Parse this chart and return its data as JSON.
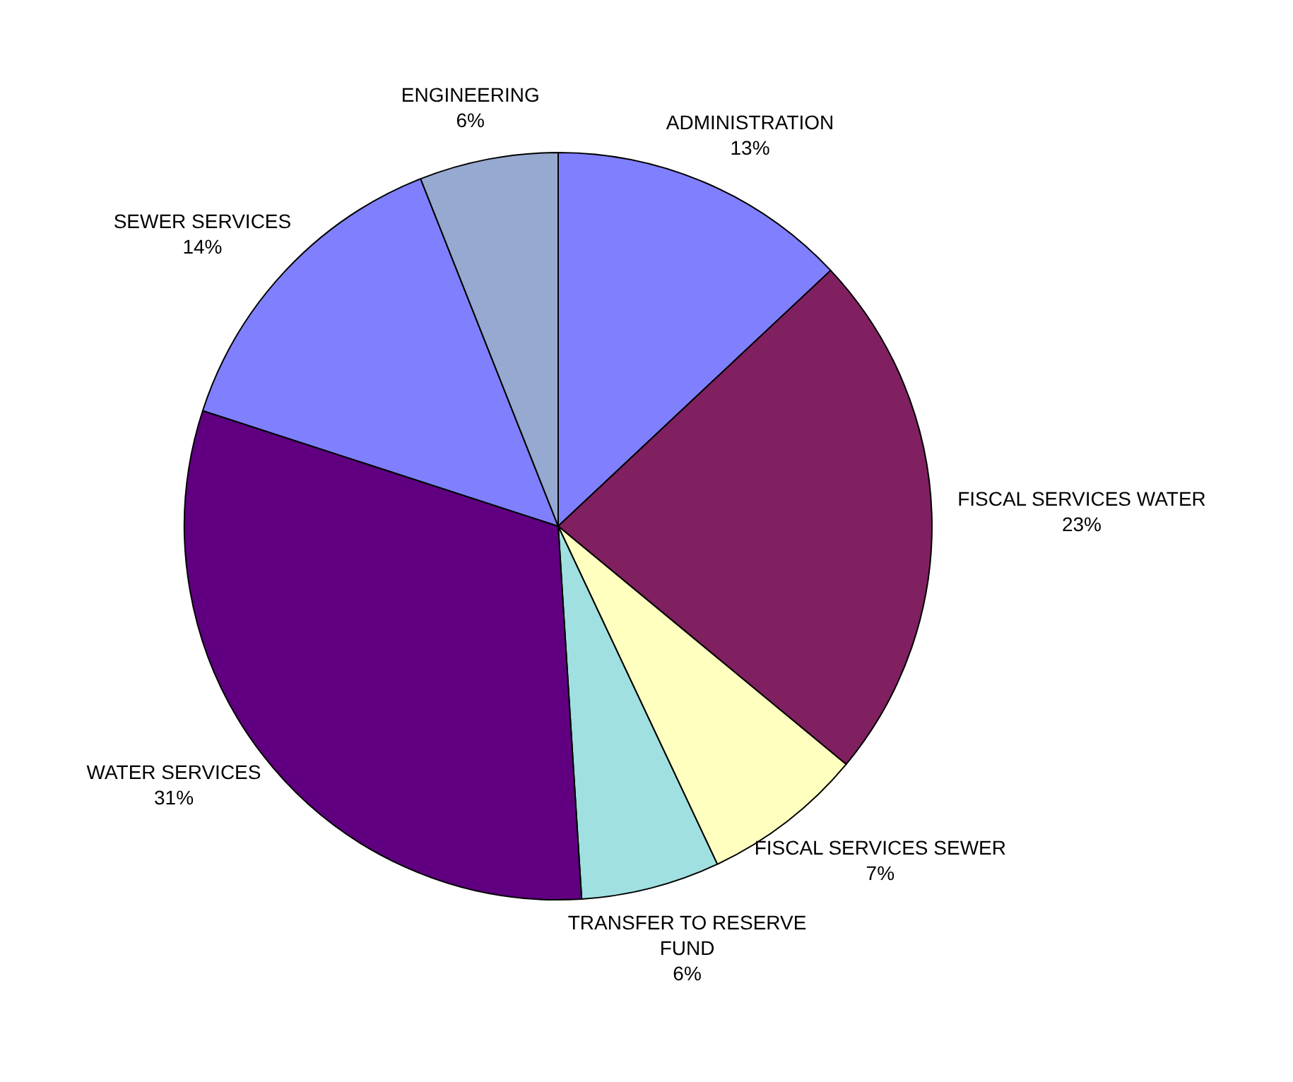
{
  "chart_data": {
    "type": "pie",
    "categories": [
      "ADMINISTRATION",
      "FISCAL SERVICES WATER",
      "FISCAL SERVICES SEWER",
      "TRANSFER TO RESERVE FUND",
      "WATER SERVICES",
      "SEWER SERVICES",
      "ENGINEERING"
    ],
    "values": [
      13,
      23,
      7,
      6,
      31,
      14,
      6
    ],
    "colors": [
      "#8080ff",
      "#802060",
      "#ffffc0",
      "#a0e0e0",
      "#600080",
      "#8080ff",
      "#96a9d0"
    ],
    "value_labels": [
      "13%",
      "23%",
      "7%",
      "6%",
      "31%",
      "14%",
      "6%"
    ],
    "legend": false
  }
}
